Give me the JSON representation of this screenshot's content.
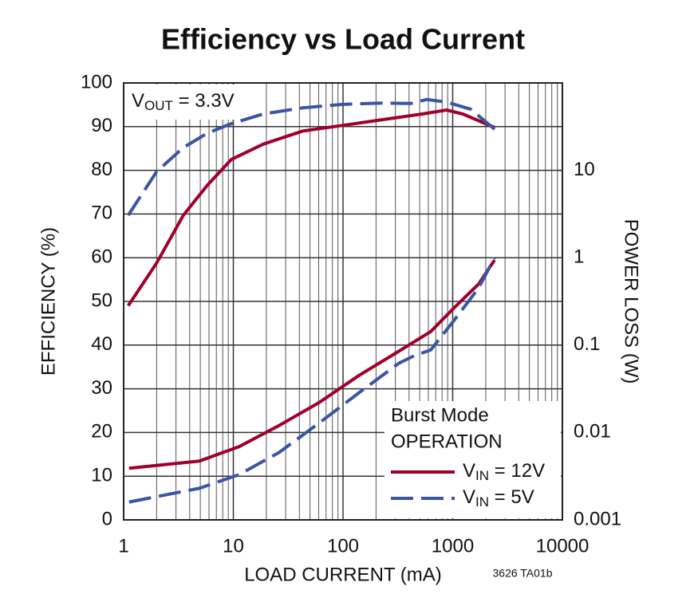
{
  "chart_data": {
    "type": "line",
    "title": "Efficiency vs Load Current",
    "xlabel": "LOAD CURRENT (mA)",
    "ylabel": "EFFICIENCY (%)",
    "y2label": "POWER LOSS (W)",
    "annotation": "VOUT = 3.3V",
    "figure_code": "3626 TA01b",
    "legend_title": [
      "Burst Mode",
      "OPERATION"
    ],
    "legend": "lower right",
    "grid": true,
    "xscale": "log",
    "y2scale": "log",
    "xlim": [
      1,
      10000
    ],
    "xticks": [
      1,
      10,
      100,
      1000,
      10000
    ],
    "ylim": [
      0,
      100
    ],
    "yticks": [
      0,
      10,
      20,
      30,
      40,
      50,
      60,
      70,
      80,
      90,
      100
    ],
    "y2lim": [
      0.001,
      100
    ],
    "y2ticks": [
      0.001,
      0.01,
      0.1,
      1,
      10
    ],
    "series": [
      {
        "name": "VIN = 12V",
        "color": "#a0002a",
        "dash": "solid",
        "x": [
          1.1,
          2,
          3.5,
          5.8,
          9.6,
          18.8,
          43,
          100,
          231,
          533,
          880,
          1230,
          2410
        ],
        "values": [
          49,
          58.8,
          69.7,
          76.6,
          82.5,
          86,
          89,
          90.3,
          91.6,
          92.9,
          93.8,
          92.9,
          89.8
        ]
      },
      {
        "name": "VIN = 5V",
        "color": "#3a55a4",
        "dash": "dashed",
        "x": [
          1.1,
          2,
          3.5,
          5.8,
          9.6,
          18.8,
          43,
          100,
          231,
          414,
          580,
          880,
          1460,
          2410
        ],
        "values": [
          69.7,
          79.7,
          85.2,
          88.5,
          90.7,
          92.9,
          94.3,
          95.1,
          95.4,
          95.3,
          96.2,
          95.6,
          94,
          89.4
        ]
      },
      {
        "name": "VIN = 12V",
        "color": "#a0002a",
        "dash": "solid",
        "axis": "y2",
        "x": [
          1.12,
          4.9,
          11.3,
          26.1,
          60.5,
          140,
          323,
          631,
          1040,
          1722,
          2410
        ],
        "values": [
          0.0039,
          0.0047,
          0.0069,
          0.012,
          0.022,
          0.045,
          0.085,
          0.143,
          0.27,
          0.5,
          0.94
        ]
      },
      {
        "name": "VIN = 5V",
        "color": "#3a55a4",
        "dash": "dashed",
        "axis": "y2",
        "x": [
          1.12,
          4.9,
          11.3,
          26.1,
          60.5,
          140,
          323,
          450,
          631,
          1040,
          1722,
          2410
        ],
        "values": [
          0.0016,
          0.0023,
          0.0033,
          0.0059,
          0.0128,
          0.0285,
          0.062,
          0.076,
          0.088,
          0.195,
          0.45,
          1.0
        ]
      }
    ]
  }
}
